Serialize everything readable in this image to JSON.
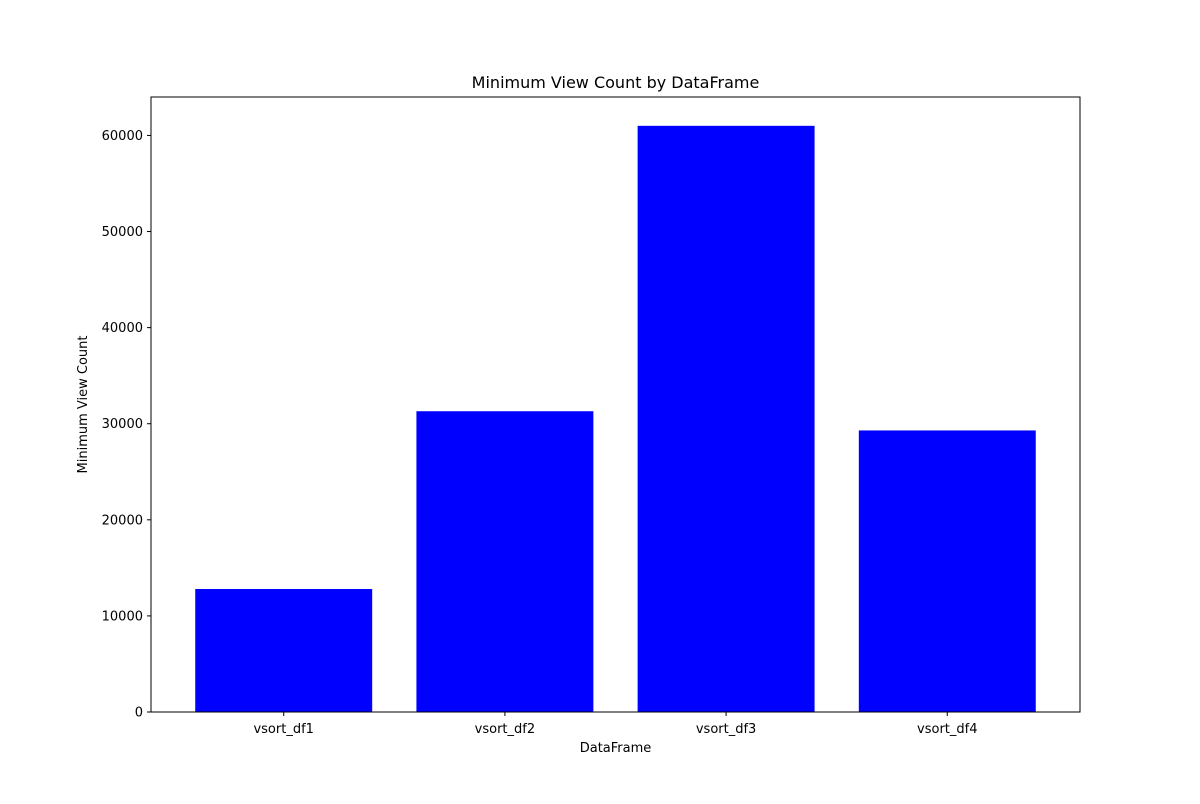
{
  "chart_data": {
    "type": "bar",
    "title": "Minimum View Count by DataFrame",
    "xlabel": "DataFrame",
    "ylabel": "Minimum View Count",
    "categories": [
      "vsort_df1",
      "vsort_df2",
      "vsort_df3",
      "vsort_df4"
    ],
    "values": [
      12800,
      31300,
      61000,
      29300
    ],
    "ylim": [
      0,
      64000
    ],
    "yticks": [
      0,
      10000,
      20000,
      30000,
      40000,
      50000,
      60000
    ],
    "ytick_labels": [
      "0",
      "10000",
      "20000",
      "30000",
      "40000",
      "50000",
      "60000"
    ],
    "bar_color": "#0000ff",
    "grid": false
  }
}
